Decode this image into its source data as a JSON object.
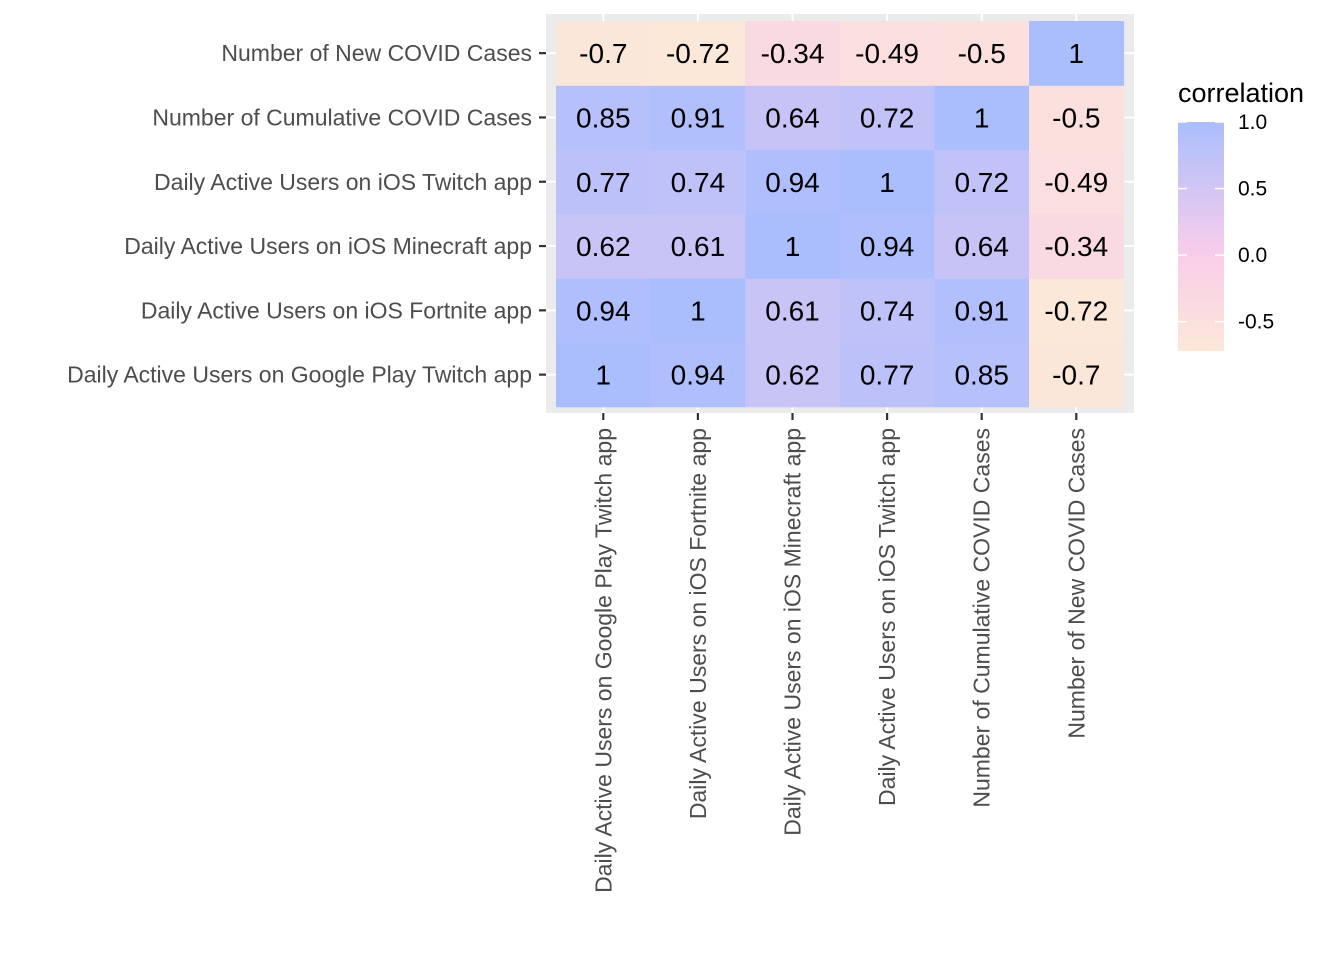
{
  "chart_data": {
    "type": "heatmap",
    "x_categories": [
      "Daily Active Users on Google Play Twitch app",
      "Daily Active Users on iOS Fortnite app",
      "Daily Active Users on iOS Minecraft app",
      "Daily Active Users on iOS Twitch app",
      "Number of Cumulative COVID Cases",
      "Number of New COVID Cases"
    ],
    "y_categories": [
      "Daily Active Users on Google Play Twitch app",
      "Daily Active Users on iOS Fortnite app",
      "Daily Active Users on iOS Minecraft app",
      "Daily Active Users on iOS Twitch app",
      "Number of Cumulative COVID Cases",
      "Number of New COVID Cases"
    ],
    "values": [
      [
        1,
        0.94,
        0.62,
        0.77,
        0.85,
        -0.7
      ],
      [
        0.94,
        1,
        0.61,
        0.74,
        0.91,
        -0.72
      ],
      [
        0.62,
        0.61,
        1,
        0.94,
        0.64,
        -0.34
      ],
      [
        0.77,
        0.74,
        0.94,
        1,
        0.72,
        -0.49
      ],
      [
        0.85,
        0.91,
        0.64,
        0.72,
        1,
        -0.5
      ],
      [
        -0.7,
        -0.72,
        -0.34,
        -0.49,
        -0.5,
        1
      ]
    ],
    "cell_labels": [
      [
        "1",
        "0.94",
        "0.62",
        "0.77",
        "0.85",
        "-0.7"
      ],
      [
        "0.94",
        "1",
        "0.61",
        "0.74",
        "0.91",
        "-0.72"
      ],
      [
        "0.62",
        "0.61",
        "1",
        "0.94",
        "0.64",
        "-0.34"
      ],
      [
        "0.77",
        "0.74",
        "0.94",
        "1",
        "0.72",
        "-0.49"
      ],
      [
        "0.85",
        "0.91",
        "0.64",
        "0.72",
        "1",
        "-0.5"
      ],
      [
        "-0.7",
        "-0.72",
        "-0.34",
        "-0.49",
        "-0.5",
        "1"
      ]
    ],
    "legend": {
      "title": "correlation",
      "placement": "right",
      "breaks": [
        1.0,
        0.5,
        0.0,
        -0.5
      ],
      "break_labels": [
        "1.0",
        "0.5",
        "0.0",
        "-0.5"
      ],
      "range": [
        -0.72,
        1
      ]
    },
    "color_scale": {
      "low_value": -0.72,
      "mid_value": 0,
      "high_value": 1,
      "low_color": "#fbe8d8",
      "mid_color": "#facdea",
      "high_color": "#aabefe"
    },
    "panel_background": "#ebebeb",
    "grid": true
  }
}
